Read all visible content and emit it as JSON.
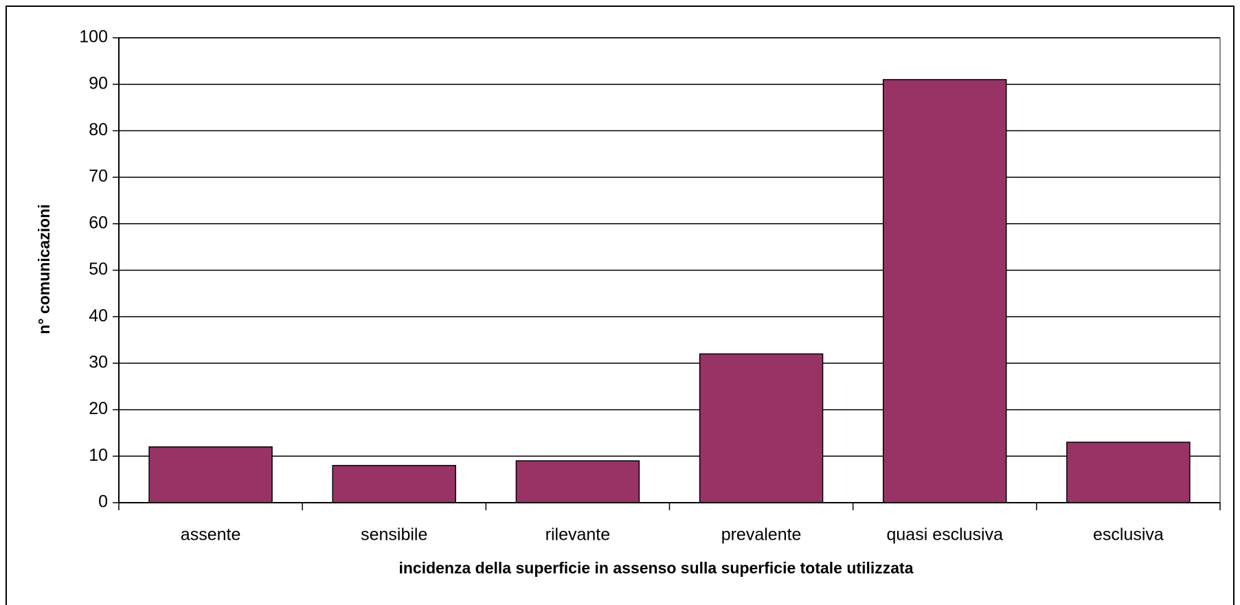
{
  "chart_data": {
    "type": "bar",
    "categories": [
      "assente",
      "sensibile",
      "rilevante",
      "prevalente",
      "quasi esclusiva",
      "esclusiva"
    ],
    "values": [
      12,
      8,
      9,
      32,
      91,
      13
    ],
    "color": "#993366",
    "x_label": "incidenza della superficie in assenso sulla superficie totale utilizzata",
    "y_label": "n° comunicazioni",
    "ylim": [
      0,
      100
    ],
    "yticks": [
      0,
      10,
      20,
      30,
      40,
      50,
      60,
      70,
      80,
      90,
      100
    ],
    "grid": true
  }
}
